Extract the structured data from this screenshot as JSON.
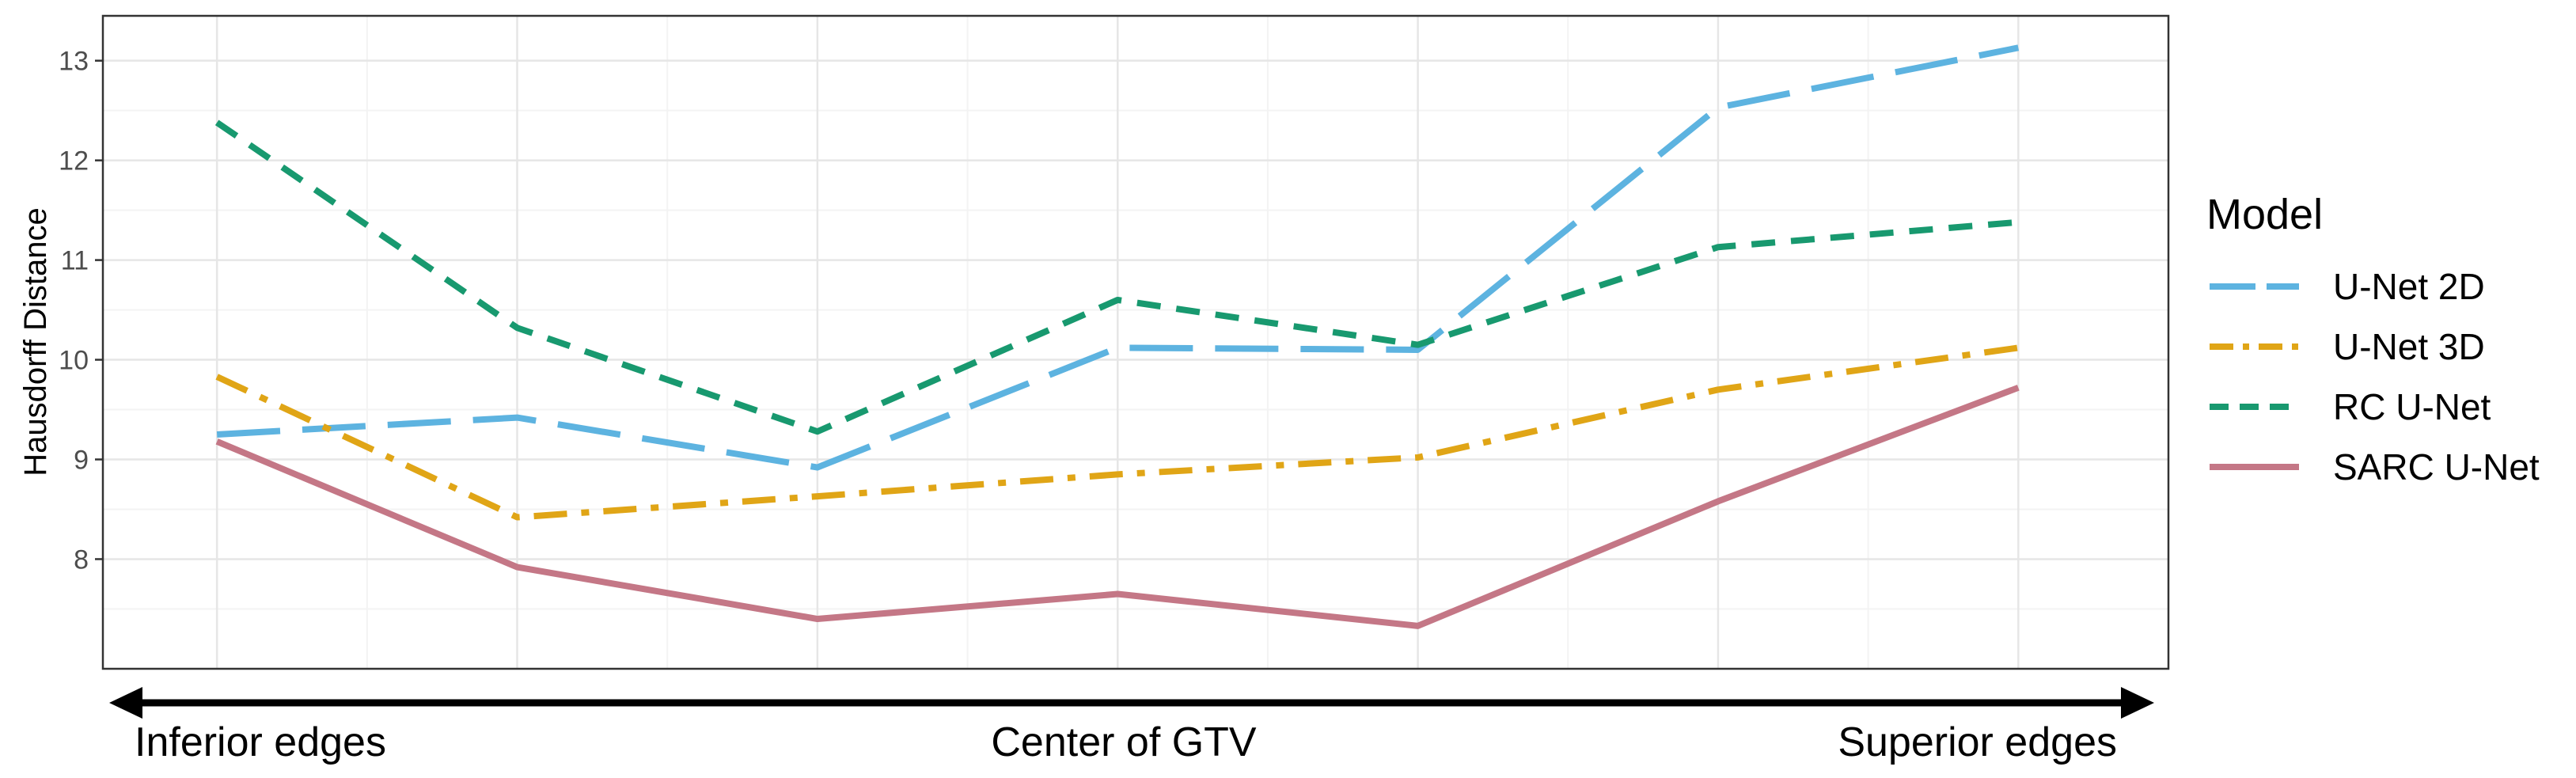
{
  "chart_data": {
    "type": "line",
    "ylabel": "Hausdorff Distance",
    "ylim": [
      6.9,
      13.45
    ],
    "yticks": [
      8,
      9,
      10,
      11,
      12,
      13
    ],
    "x": [
      1,
      2,
      3,
      4,
      5,
      6,
      7
    ],
    "xlim": [
      0.62,
      7.5
    ],
    "grid": true,
    "bottom_axis": {
      "labels": [
        "Inferior edges",
        "Center of GTV",
        "Superior edges"
      ],
      "arrow": "double-headed"
    },
    "legend": {
      "title": "Model",
      "position": "right"
    },
    "series": [
      {
        "name": "U-Net 2D",
        "color": "#5DB3E0",
        "dash": "long-dash",
        "values": [
          9.25,
          9.42,
          8.92,
          10.12,
          10.1,
          12.53,
          13.13
        ]
      },
      {
        "name": "U-Net 3D",
        "color": "#E0A516",
        "dash": "dot-dash",
        "values": [
          9.83,
          8.42,
          8.63,
          8.85,
          9.02,
          9.7,
          10.12
        ]
      },
      {
        "name": "RC U-Net",
        "color": "#18996F",
        "dash": "short-dash",
        "values": [
          12.38,
          10.32,
          9.28,
          10.6,
          10.15,
          11.13,
          11.38
        ]
      },
      {
        "name": "SARC U-Net",
        "color": "#C47786",
        "dash": "solid",
        "values": [
          9.18,
          7.92,
          7.4,
          7.65,
          7.33,
          8.58,
          9.72
        ]
      }
    ]
  }
}
